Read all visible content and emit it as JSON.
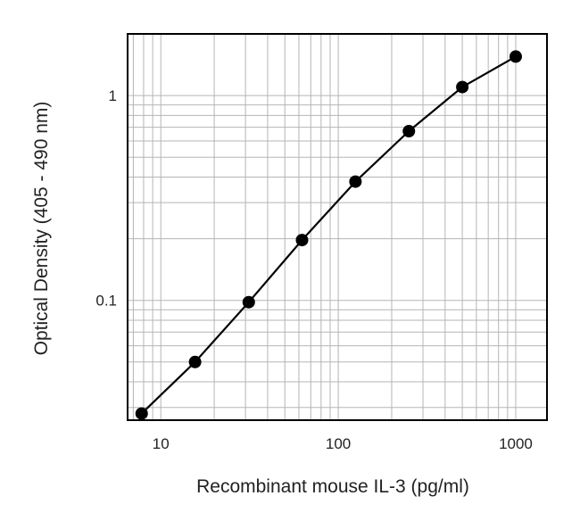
{
  "chart_data": {
    "type": "line",
    "title": "",
    "xlabel": "Recombinant mouse IL-3 (pg/ml)",
    "ylabel": "Optical Density (405 - 490 nm)",
    "x_scale": "log",
    "y_scale": "log",
    "xlim": [
      6.5,
      1500
    ],
    "ylim": [
      0.026,
      2.0
    ],
    "x_ticks": [
      {
        "value": 10,
        "label": "10"
      },
      {
        "value": 100,
        "label": "100"
      },
      {
        "value": 1000,
        "label": "1000"
      }
    ],
    "y_ticks": [
      {
        "value": 0.1,
        "label": "0.1"
      },
      {
        "value": 1,
        "label": "1"
      }
    ],
    "grid": true,
    "series": [
      {
        "color": "#000000",
        "marker": "circle",
        "x": [
          7.8,
          15.6,
          31.3,
          62.5,
          125,
          250,
          500,
          1000
        ],
        "y": [
          0.028,
          0.05,
          0.098,
          0.197,
          0.38,
          0.67,
          1.1,
          1.55
        ]
      }
    ]
  }
}
